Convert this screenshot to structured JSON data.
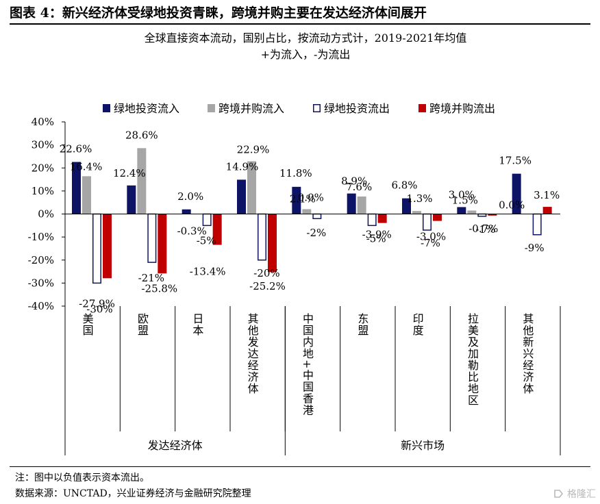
{
  "figure_title": "图表 4：新兴经济体受绿地投资青睐，跨境并购主要在发达经济体间展开",
  "chart_data": {
    "type": "bar",
    "subtitle": "全球直接资本流动，国别占比，按流动方式计，2019-2021年均值",
    "subtitle2": "+为流入，-为流出",
    "categories": [
      "美国",
      "欧盟",
      "日本",
      "其他发达经济体",
      "中国内地+中国香港",
      "东盟",
      "印度",
      "拉美及加勒比地区",
      "其他新兴经济体"
    ],
    "groups": [
      {
        "label": "发达经济体",
        "count": 4
      },
      {
        "label": "新兴市场",
        "count": 5
      }
    ],
    "series": [
      {
        "name": "绿地投资流入",
        "color": "#0d1466",
        "style": "fill",
        "values": [
          22.6,
          12.4,
          2.0,
          14.9,
          11.8,
          8.9,
          6.8,
          3.0,
          17.5
        ],
        "labels": [
          "22.6%",
          "12.4%",
          "2.0%",
          "14.9%",
          "11.8%",
          "8.9%",
          "6.8%",
          "3.0%",
          "17.5%"
        ]
      },
      {
        "name": "跨境并购流入",
        "color": "#a6a6a6",
        "style": "fill",
        "values": [
          16.4,
          28.6,
          0.0,
          22.9,
          2.1,
          7.6,
          1.3,
          1.5,
          0.0
        ],
        "labels": [
          "16.4%",
          "28.6%",
          "",
          "22.9%",
          "2.1%",
          "7.6%",
          "1.3%",
          "1.5%",
          "0.0%"
        ]
      },
      {
        "name": "绿地投资流出",
        "color": "#0d1466",
        "style": "outline",
        "values": [
          -30,
          -21,
          -5,
          -20,
          -2,
          -5,
          -7,
          -1,
          -9
        ],
        "labels": [
          "-30%",
          "-21%",
          "-5%",
          "-20%",
          "-2%",
          "-5%",
          "-7%",
          "-1%",
          "-9%"
        ]
      },
      {
        "name": "跨境并购流出",
        "color": "#c00000",
        "style": "fill",
        "values": [
          -27.9,
          -25.8,
          -13.4,
          -25.2,
          0.0,
          -3.9,
          -3.0,
          -0.7,
          3.1
        ],
        "labels": [
          "-27.9%",
          "-25.8%",
          "-13.4%",
          "-25.2%",
          "0.0%",
          "-3.9%",
          "-3.0%",
          "-0.7%",
          "3.1%"
        ]
      }
    ],
    "extra_labels": [
      {
        "category": 2,
        "text": "-0.3%"
      }
    ],
    "ylim": [
      -40,
      40
    ],
    "yticks": [
      40,
      30,
      20,
      10,
      0,
      -10,
      -20,
      -30,
      -40
    ],
    "ytick_labels": [
      "40%",
      "30%",
      "20%",
      "10%",
      "0%",
      "-10%",
      "-20%",
      "-30%",
      "-40%"
    ],
    "legend_position": "top",
    "grid": false
  },
  "note": "注：图中以负值表示资本流出。",
  "source": "数据来源：UNCTAD，兴业证券经济与金融研究院整理",
  "watermark": "格隆汇"
}
